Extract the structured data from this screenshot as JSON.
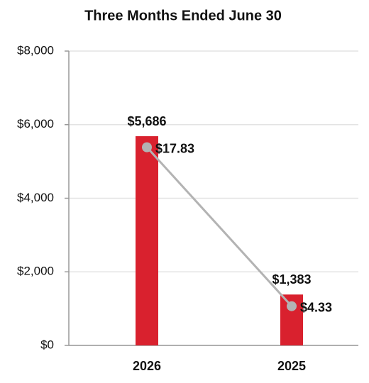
{
  "chart_data": {
    "type": "bar",
    "title": "Three Months Ended June 30",
    "categories": [
      "2026",
      "2025"
    ],
    "series": [
      {
        "type": "bar",
        "color": "#d9212e",
        "values": [
          5686,
          1383
        ],
        "value_labels": [
          "$5,686",
          "$1,383"
        ]
      },
      {
        "type": "line",
        "axis": "y2",
        "color": "#b3b3b3",
        "values": [
          17.83,
          4.33
        ],
        "value_labels": [
          "$17.83",
          "$4.33"
        ]
      }
    ],
    "ylim": [
      0,
      8000
    ],
    "yticks": [
      {
        "value": 0,
        "label": "$0"
      },
      {
        "value": 2000,
        "label": "$2,000"
      },
      {
        "value": 4000,
        "label": "$4,000"
      },
      {
        "value": 6000,
        "label": "$6,000"
      },
      {
        "value": 8000,
        "label": "$8,000"
      }
    ],
    "y2lim": [
      1,
      26
    ],
    "grid": true
  }
}
